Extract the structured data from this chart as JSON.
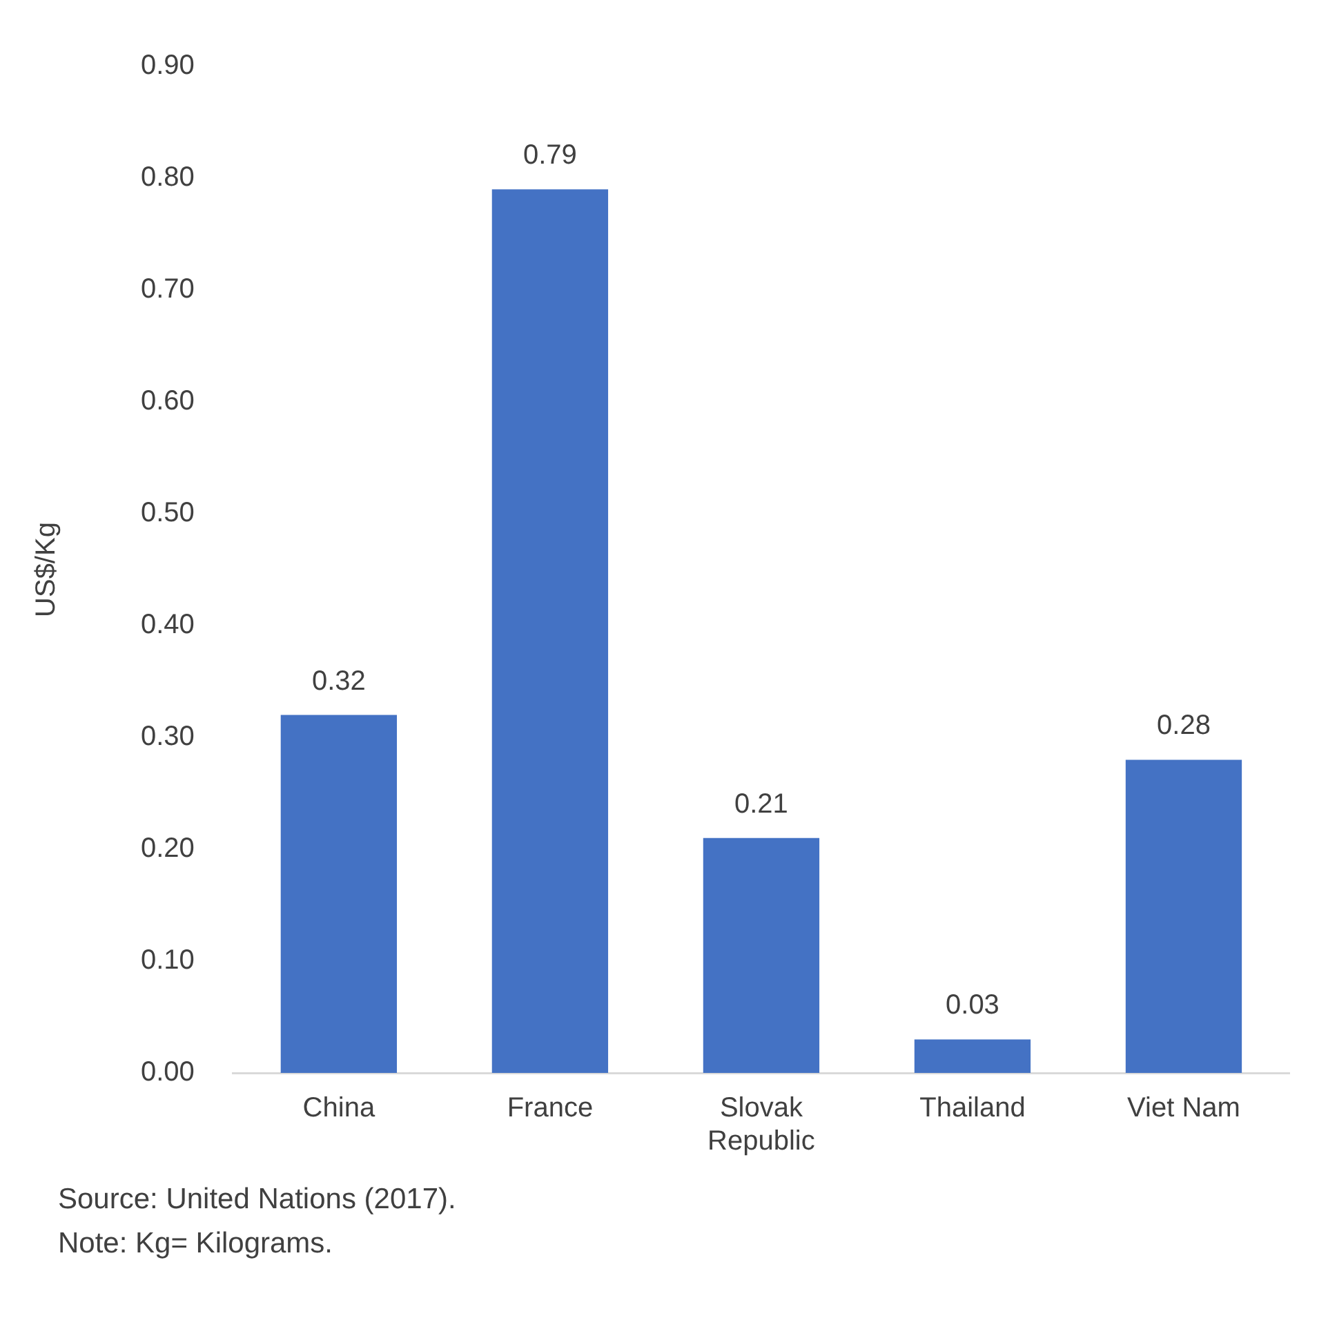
{
  "chart_data": {
    "type": "bar",
    "ylabel": "US$/Kg",
    "categories": [
      "China",
      "France",
      "Slovak Republic",
      "Thailand",
      "Viet Nam"
    ],
    "values": [
      0.32,
      0.79,
      0.21,
      0.03,
      0.28
    ],
    "color": "#4472c4",
    "ylim": [
      0,
      0.9
    ],
    "yticks": [
      {
        "value": 0,
        "label": "0.00"
      },
      {
        "value": 0.1,
        "label": "0.10"
      },
      {
        "value": 0.2,
        "label": "0.20"
      },
      {
        "value": 0.3,
        "label": "0.30"
      },
      {
        "value": 0.4,
        "label": "0.40"
      },
      {
        "value": 0.5,
        "label": "0.50"
      },
      {
        "value": 0.6,
        "label": "0.60"
      },
      {
        "value": 0.7,
        "label": "0.70"
      },
      {
        "value": 0.8,
        "label": "0.80"
      },
      {
        "value": 0.9,
        "label": "0.90"
      }
    ],
    "grid": false,
    "legend": false,
    "data_labels": true,
    "annotations": [
      "Source: United Nations (2017).",
      "Note: Kg= Kilograms."
    ]
  }
}
